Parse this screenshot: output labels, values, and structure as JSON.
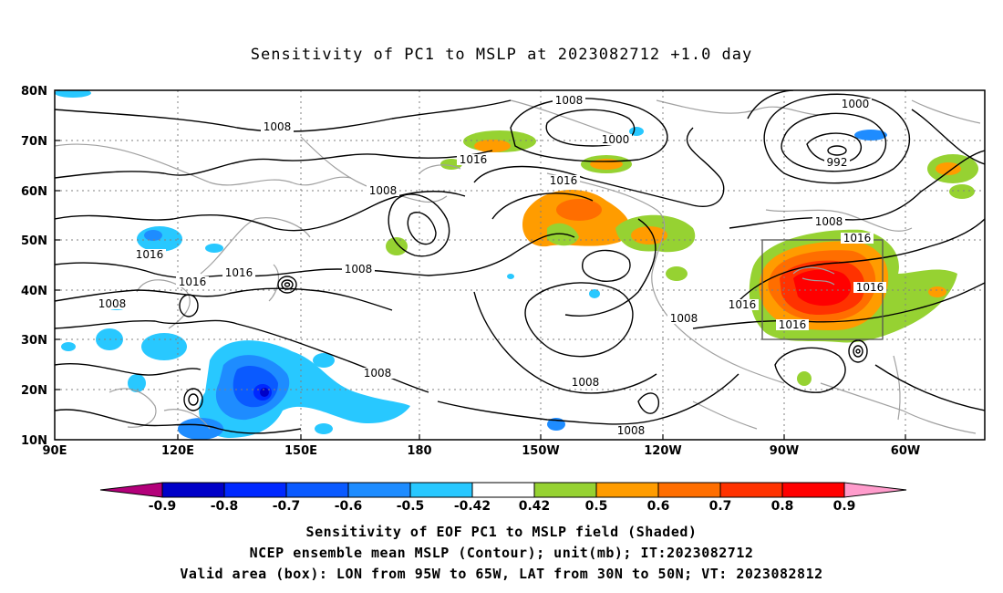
{
  "title": "Sensitivity of PC1 to MSLP at 2023082712 +1.0 day",
  "map": {
    "lat_labels": [
      "80N",
      "70N",
      "60N",
      "50N",
      "40N",
      "30N",
      "20N",
      "10N"
    ],
    "lon_labels": [
      "90E",
      "120E",
      "150E",
      "180",
      "150W",
      "120W",
      "90W",
      "60W"
    ],
    "contour_labels": [
      {
        "text": "1008"
      },
      {
        "text": "1008"
      },
      {
        "text": "1000"
      },
      {
        "text": "1000"
      },
      {
        "text": "992"
      },
      {
        "text": "1016"
      },
      {
        "text": "1016"
      },
      {
        "text": "1008"
      },
      {
        "text": "1008"
      },
      {
        "text": "1016"
      },
      {
        "text": "1016"
      },
      {
        "text": "1016"
      },
      {
        "text": "1008"
      },
      {
        "text": "1016"
      },
      {
        "text": "1016"
      },
      {
        "text": "1008"
      },
      {
        "text": "1016"
      },
      {
        "text": "1016"
      },
      {
        "text": "1008"
      },
      {
        "text": "1008"
      },
      {
        "text": "1008"
      },
      {
        "text": "1008"
      }
    ],
    "box": {
      "lon_from": "95W",
      "lon_to": "65W",
      "lat_from": "30N",
      "lat_to": "50N"
    }
  },
  "colorbar": {
    "labels": [
      "-0.9",
      "-0.8",
      "-0.7",
      "-0.6",
      "-0.5",
      "-0.42",
      "0.42",
      "0.5",
      "0.6",
      "0.7",
      "0.8",
      "0.9"
    ],
    "colors": [
      "#b3007a",
      "#0000c8",
      "#0028ff",
      "#0a5aff",
      "#1e8cff",
      "#28c8ff",
      "#ffffff",
      "#96d232",
      "#ff9c00",
      "#ff6e00",
      "#ff3200",
      "#ff0000",
      "#ff9ccc"
    ]
  },
  "captions": {
    "line1": "Sensitivity of EOF PC1 to MSLP field (Shaded)",
    "line2": "NCEP ensemble mean MSLP (Contour); unit(mb); IT:2023082712",
    "line3": "Valid area (box): LON from 95W to 65W, LAT from 30N to 50N; VT: 2023082812"
  }
}
